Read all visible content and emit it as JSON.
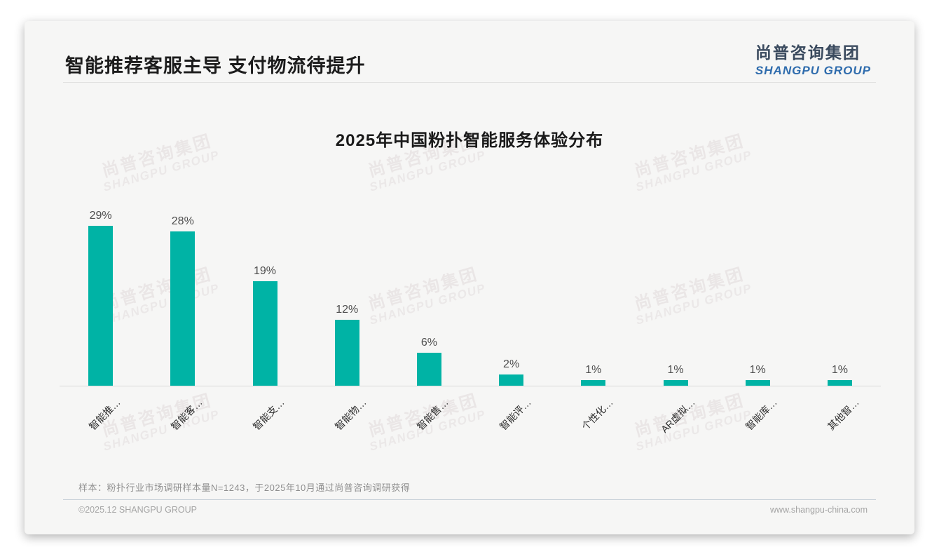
{
  "header": {
    "title": "智能推荐客服主导 支付物流待提升"
  },
  "logo": {
    "cn": "尚普咨询集团",
    "en": "SHANGPU GROUP"
  },
  "watermark": {
    "line1": "尚普咨询集团",
    "line2": "SHANGPU GROUP"
  },
  "chart_data": {
    "type": "bar",
    "title": "2025年中国粉扑智能服务体验分布",
    "categories": [
      "智能推…",
      "智能客…",
      "智能支…",
      "智能物…",
      "智能售…",
      "智能评…",
      "个性化…",
      "AR虚拟…",
      "智能库…",
      "其他智…"
    ],
    "values": [
      29,
      28,
      19,
      12,
      6,
      2,
      1,
      1,
      1,
      1
    ],
    "value_labels": [
      "29%",
      "28%",
      "19%",
      "12%",
      "6%",
      "2%",
      "1%",
      "1%",
      "1%",
      "1%"
    ],
    "unit": "%",
    "bar_color": "#00b3a5",
    "ylim": [
      0,
      30
    ],
    "grid": false,
    "legend": "none",
    "xlabel": "",
    "ylabel": ""
  },
  "footnote": "样本：粉扑行业市场调研样本量N=1243，于2025年10月通过尚普咨询调研获得",
  "footer": {
    "left": "©2025.12 SHANGPU GROUP",
    "right": "www.shangpu-china.com"
  }
}
